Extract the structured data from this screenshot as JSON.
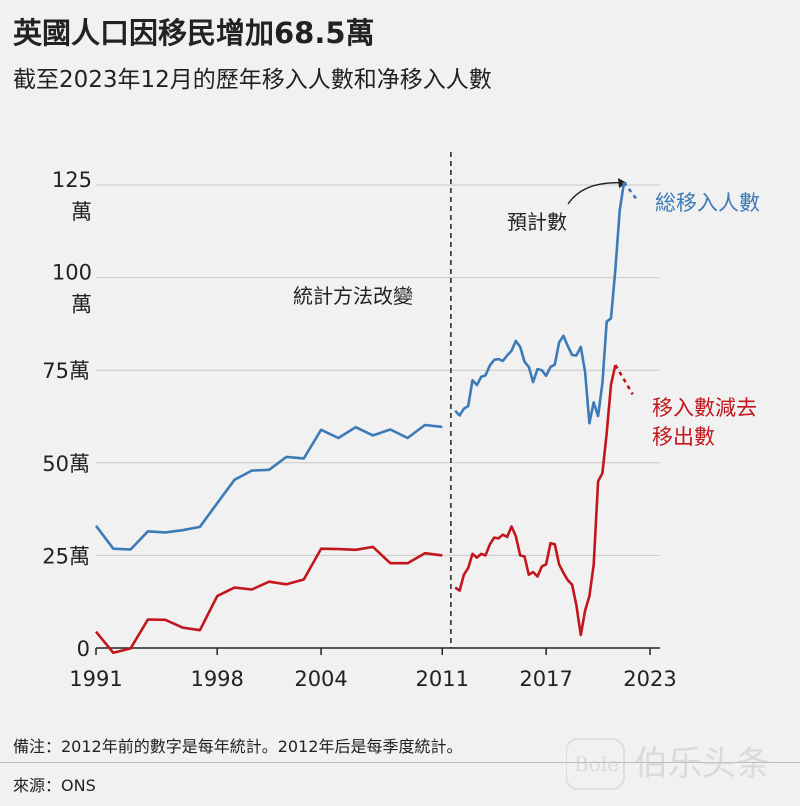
{
  "header": {
    "title": "英國人口因移民增加68.5萬",
    "subtitle": "截至2023年12月的歷年移入人數和净移入人數"
  },
  "footer": {
    "note": "備注：2012年前的數字是每年統計。2012年后是每季度統計。",
    "source": "來源：ONS",
    "watermark": "伯乐头条"
  },
  "colors": {
    "immigration": "#3d7ab8",
    "net_migration": "#c2161d",
    "grid": "#c9c9c9",
    "axis": "#222222"
  },
  "chart_data": {
    "type": "line",
    "title": "英國人口因移民增加68.5萬",
    "subtitle": "截至2023年12月的歷年移入人數和净移入人數",
    "x_tick_labels": [
      "1991",
      "1998",
      "2004",
      "2011",
      "2017",
      "2023"
    ],
    "x_tick_values": [
      1991,
      1998,
      2004,
      2011,
      2017,
      2023
    ],
    "y_tick_labels": [
      "0",
      "25萬",
      "50萬",
      "75萬",
      "100萬",
      "125萬"
    ],
    "y_tick_values": [
      0,
      250000,
      500000,
      750000,
      1000000,
      1250000
    ],
    "xlim": [
      1991,
      2023
    ],
    "ylim": [
      0,
      1250000
    ],
    "grid": true,
    "annotations": {
      "method_change": {
        "label": "統計方法改變",
        "x": 2011.5
      },
      "projected": {
        "label": "預計數"
      }
    },
    "series": [
      {
        "name": "総移入人數",
        "color": "#3d7ab8",
        "annual": [
          [
            1991,
            330000
          ],
          [
            1992,
            268000
          ],
          [
            1993,
            266000
          ],
          [
            1994,
            315000
          ],
          [
            1995,
            312000
          ],
          [
            1996,
            318000
          ],
          [
            1997,
            327000
          ],
          [
            1998,
            391000
          ],
          [
            1999,
            454000
          ],
          [
            2000,
            479000
          ],
          [
            2001,
            481000
          ],
          [
            2002,
            516000
          ],
          [
            2003,
            512000
          ],
          [
            2004,
            589000
          ],
          [
            2005,
            567000
          ],
          [
            2006,
            596000
          ],
          [
            2007,
            574000
          ],
          [
            2008,
            590000
          ],
          [
            2009,
            567000
          ],
          [
            2010,
            602000
          ],
          [
            2011,
            597000
          ]
        ],
        "quarterly": [
          [
            2011.75,
            640000
          ],
          [
            2012.0,
            628000
          ],
          [
            2012.25,
            646000
          ],
          [
            2012.5,
            653000
          ],
          [
            2012.75,
            723000
          ],
          [
            2013.0,
            710000
          ],
          [
            2013.25,
            732000
          ],
          [
            2013.5,
            736000
          ],
          [
            2013.75,
            763000
          ],
          [
            2014.0,
            778000
          ],
          [
            2014.25,
            780000
          ],
          [
            2014.5,
            775000
          ],
          [
            2014.75,
            790000
          ],
          [
            2015.0,
            802000
          ],
          [
            2015.25,
            829000
          ],
          [
            2015.5,
            813000
          ],
          [
            2015.75,
            773000
          ],
          [
            2016.0,
            759000
          ],
          [
            2016.25,
            718000
          ],
          [
            2016.5,
            753000
          ],
          [
            2016.75,
            750000
          ],
          [
            2017.0,
            735000
          ],
          [
            2017.25,
            759000
          ],
          [
            2017.5,
            765000
          ],
          [
            2017.75,
            825000
          ],
          [
            2018.0,
            843000
          ],
          [
            2018.25,
            815000
          ],
          [
            2018.5,
            791000
          ],
          [
            2018.75,
            790000
          ],
          [
            2019.0,
            813000
          ],
          [
            2019.25,
            745000
          ],
          [
            2019.5,
            607000
          ],
          [
            2019.75,
            663000
          ],
          [
            2020.0,
            626000
          ],
          [
            2020.25,
            715000
          ],
          [
            2020.5,
            881000
          ],
          [
            2020.75,
            890000
          ],
          [
            2021.0,
            1023000
          ],
          [
            2021.25,
            1181000
          ],
          [
            2021.5,
            1257000
          ]
        ],
        "projected": [
          [
            2021.5,
            1257000
          ],
          [
            2022.25,
            1210000
          ]
        ]
      },
      {
        "name": "移入數減去移出數",
        "color": "#c2161d",
        "annual": [
          [
            1991,
            44000
          ],
          [
            1992,
            -13000
          ],
          [
            1993,
            -1000
          ],
          [
            1994,
            77000
          ],
          [
            1995,
            76000
          ],
          [
            1996,
            55000
          ],
          [
            1997,
            48000
          ],
          [
            1998,
            140000
          ],
          [
            1999,
            163000
          ],
          [
            2000,
            158000
          ],
          [
            2001,
            179000
          ],
          [
            2002,
            172000
          ],
          [
            2003,
            185000
          ],
          [
            2004,
            268000
          ],
          [
            2005,
            267000
          ],
          [
            2006,
            265000
          ],
          [
            2007,
            273000
          ],
          [
            2008,
            229000
          ],
          [
            2009,
            229000
          ],
          [
            2010,
            256000
          ],
          [
            2011,
            250000
          ]
        ],
        "quarterly": [
          [
            2011.75,
            163000
          ],
          [
            2012.0,
            155000
          ],
          [
            2012.25,
            198000
          ],
          [
            2012.5,
            216000
          ],
          [
            2012.75,
            254000
          ],
          [
            2013.0,
            244000
          ],
          [
            2013.25,
            254000
          ],
          [
            2013.5,
            250000
          ],
          [
            2013.75,
            280000
          ],
          [
            2014.0,
            298000
          ],
          [
            2014.25,
            296000
          ],
          [
            2014.5,
            306000
          ],
          [
            2014.75,
            300000
          ],
          [
            2015.0,
            328000
          ],
          [
            2015.25,
            302000
          ],
          [
            2015.5,
            250000
          ],
          [
            2015.75,
            247000
          ],
          [
            2016.0,
            198000
          ],
          [
            2016.25,
            205000
          ],
          [
            2016.5,
            193000
          ],
          [
            2016.75,
            220000
          ],
          [
            2017.0,
            226000
          ],
          [
            2017.25,
            283000
          ],
          [
            2017.5,
            280000
          ],
          [
            2017.75,
            226000
          ],
          [
            2018.0,
            203000
          ],
          [
            2018.25,
            183000
          ],
          [
            2018.5,
            171000
          ],
          [
            2018.75,
            115000
          ],
          [
            2019.0,
            35000
          ],
          [
            2019.25,
            101000
          ],
          [
            2019.5,
            140000
          ],
          [
            2019.75,
            225000
          ],
          [
            2020.0,
            450000
          ],
          [
            2020.25,
            472000
          ],
          [
            2020.5,
            580000
          ],
          [
            2020.75,
            711000
          ],
          [
            2021.0,
            764000
          ]
        ],
        "projected": [
          [
            2021.0,
            764000
          ],
          [
            2022.0,
            685000
          ]
        ]
      }
    ]
  }
}
